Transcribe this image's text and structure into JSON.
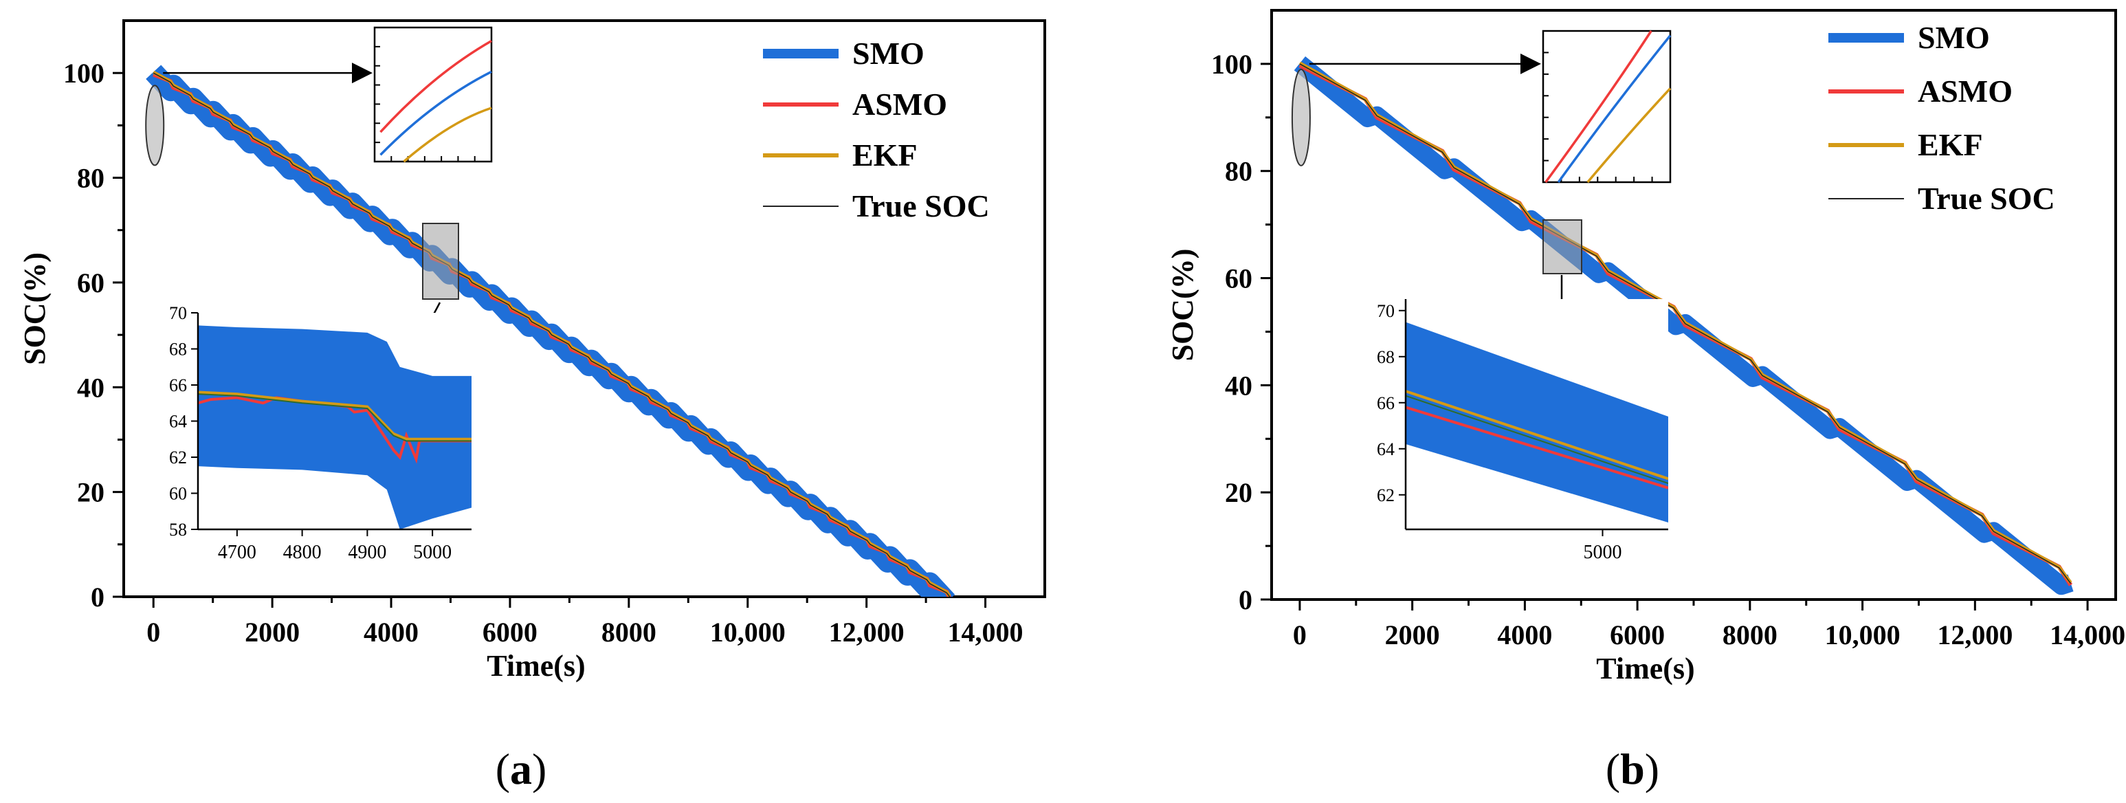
{
  "colors": {
    "smo": "#1f6fd8",
    "asmo": "#f03a3a",
    "ekf": "#d49a16",
    "true_soc": "#222222"
  },
  "chart_data": [
    {
      "type": "line",
      "panel": "a",
      "caption": "(a)",
      "caption_letter": "a",
      "xlabel": "Time(s)",
      "ylabel": "SOC(%)",
      "xlim": [
        -500,
        15000
      ],
      "ylim": [
        0,
        110
      ],
      "xticks": [
        0,
        2000,
        4000,
        6000,
        8000,
        10000,
        12000,
        14000
      ],
      "xtick_labels": [
        "0",
        "2000",
        "4000",
        "6000",
        "8000",
        "10,000",
        "12,000",
        "14,000"
      ],
      "yticks": [
        0,
        20,
        40,
        60,
        80,
        100
      ],
      "ytick_labels": [
        "0",
        "20",
        "40",
        "60",
        "80",
        "100"
      ],
      "legend": [
        "SMO",
        "ASMO",
        "EKF",
        "True SOC"
      ],
      "legend_position": "top-right",
      "series": [
        {
          "name": "True SOC",
          "x": [
            0,
            13400
          ],
          "y": [
            100,
            0
          ]
        },
        {
          "name": "EKF",
          "x": [
            0,
            13400
          ],
          "y": [
            100,
            0
          ]
        },
        {
          "name": "ASMO",
          "x": [
            0,
            13400
          ],
          "y": [
            99.5,
            0
          ]
        },
        {
          "name": "SMO",
          "x": [
            0,
            13400
          ],
          "y": [
            100,
            0
          ],
          "band": 4
        }
      ],
      "inset": {
        "xlim": [
          4640,
          5060
        ],
        "ylim": [
          58,
          70
        ],
        "xticks": [
          4700,
          4800,
          4900,
          5000
        ],
        "xtick_labels": [
          "4700",
          "4800",
          "4900",
          "5000"
        ],
        "yticks": [
          58,
          60,
          62,
          64,
          66,
          68,
          70
        ],
        "ytick_labels": [
          "58",
          "60",
          "62",
          "64",
          "66",
          "68",
          "70"
        ],
        "series": [
          {
            "name": "SMO upper",
            "x": [
              4640,
              4700,
              4800,
              4900,
              4930,
              4950,
              5000,
              5060
            ],
            "y": [
              69.3,
              69.2,
              69.1,
              68.9,
              68.4,
              67.0,
              66.5,
              66.5
            ]
          },
          {
            "name": "SMO lower",
            "x": [
              4640,
              4700,
              4800,
              4900,
              4930,
              4950,
              5000,
              5060
            ],
            "y": [
              61.5,
              61.4,
              61.3,
              61.0,
              60.2,
              58.0,
              58.6,
              59.2
            ]
          },
          {
            "name": "True SOC",
            "x": [
              4640,
              4700,
              4800,
              4900,
              4940,
              4960,
              5000,
              5060
            ],
            "y": [
              65.5,
              65.4,
              65.0,
              64.7,
              63.2,
              62.9,
              62.9,
              62.9
            ]
          },
          {
            "name": "EKF",
            "x": [
              4640,
              4700,
              4800,
              4900,
              4940,
              4960,
              5000,
              5060
            ],
            "y": [
              65.6,
              65.5,
              65.1,
              64.8,
              63.3,
              63.0,
              63.0,
              63.0
            ]
          },
          {
            "name": "ASMO",
            "x": [
              4640,
              4660,
              4700,
              4740,
              4760,
              4800,
              4870,
              4880,
              4900,
              4940,
              4950,
              4960,
              4975,
              4980,
              5000,
              5060
            ],
            "y": [
              65.0,
              65.2,
              65.3,
              65.0,
              65.3,
              65.1,
              64.8,
              64.5,
              64.6,
              62.4,
              62.0,
              63.2,
              61.9,
              62.9,
              62.9,
              62.9
            ]
          }
        ]
      }
    },
    {
      "type": "line",
      "panel": "b",
      "caption": "(b)",
      "caption_letter": "b",
      "xlabel": "Time(s)",
      "ylabel": "SOC(%)",
      "xlim": [
        -500,
        14500
      ],
      "ylim": [
        0,
        110
      ],
      "xticks": [
        0,
        2000,
        4000,
        6000,
        8000,
        10000,
        12000,
        14000
      ],
      "xtick_labels": [
        "0",
        "2000",
        "4000",
        "6000",
        "8000",
        "10,000",
        "12,000",
        "14,000"
      ],
      "yticks": [
        0,
        20,
        40,
        60,
        80,
        100
      ],
      "ytick_labels": [
        "0",
        "20",
        "40",
        "60",
        "80",
        "100"
      ],
      "legend": [
        "SMO",
        "ASMO",
        "EKF",
        "True SOC"
      ],
      "legend_position": "top-right",
      "series": [
        {
          "name": "True SOC",
          "x": [
            0,
            13700
          ],
          "y": [
            100,
            3
          ]
        },
        {
          "name": "EKF",
          "x": [
            0,
            13700
          ],
          "y": [
            100,
            3
          ]
        },
        {
          "name": "ASMO",
          "x": [
            0,
            13700
          ],
          "y": [
            99.3,
            3
          ]
        },
        {
          "name": "SMO",
          "x": [
            0,
            13700
          ],
          "y": [
            100,
            3
          ],
          "band": 2
        }
      ],
      "inset": {
        "xlim": [
          4550,
          5150
        ],
        "ylim": [
          60.5,
          70.5
        ],
        "xticks": [
          5000
        ],
        "xtick_labels": [
          "5000"
        ],
        "yticks": [
          62,
          64,
          66,
          68,
          70
        ],
        "ytick_labels": [
          "62",
          "64",
          "66",
          "68",
          "70"
        ],
        "series": [
          {
            "name": "SMO upper",
            "x": [
              4550,
              5150
            ],
            "y": [
              69.5,
              65.4
            ]
          },
          {
            "name": "SMO lower",
            "x": [
              4550,
              5150
            ],
            "y": [
              64.2,
              60.8
            ]
          },
          {
            "name": "True SOC",
            "x": [
              4550,
              5150
            ],
            "y": [
              66.3,
              62.5
            ]
          },
          {
            "name": "EKF",
            "x": [
              4550,
              5150
            ],
            "y": [
              66.5,
              62.7
            ]
          },
          {
            "name": "ASMO",
            "x": [
              4550,
              5150
            ],
            "y": [
              65.8,
              62.3
            ]
          }
        ]
      }
    }
  ]
}
